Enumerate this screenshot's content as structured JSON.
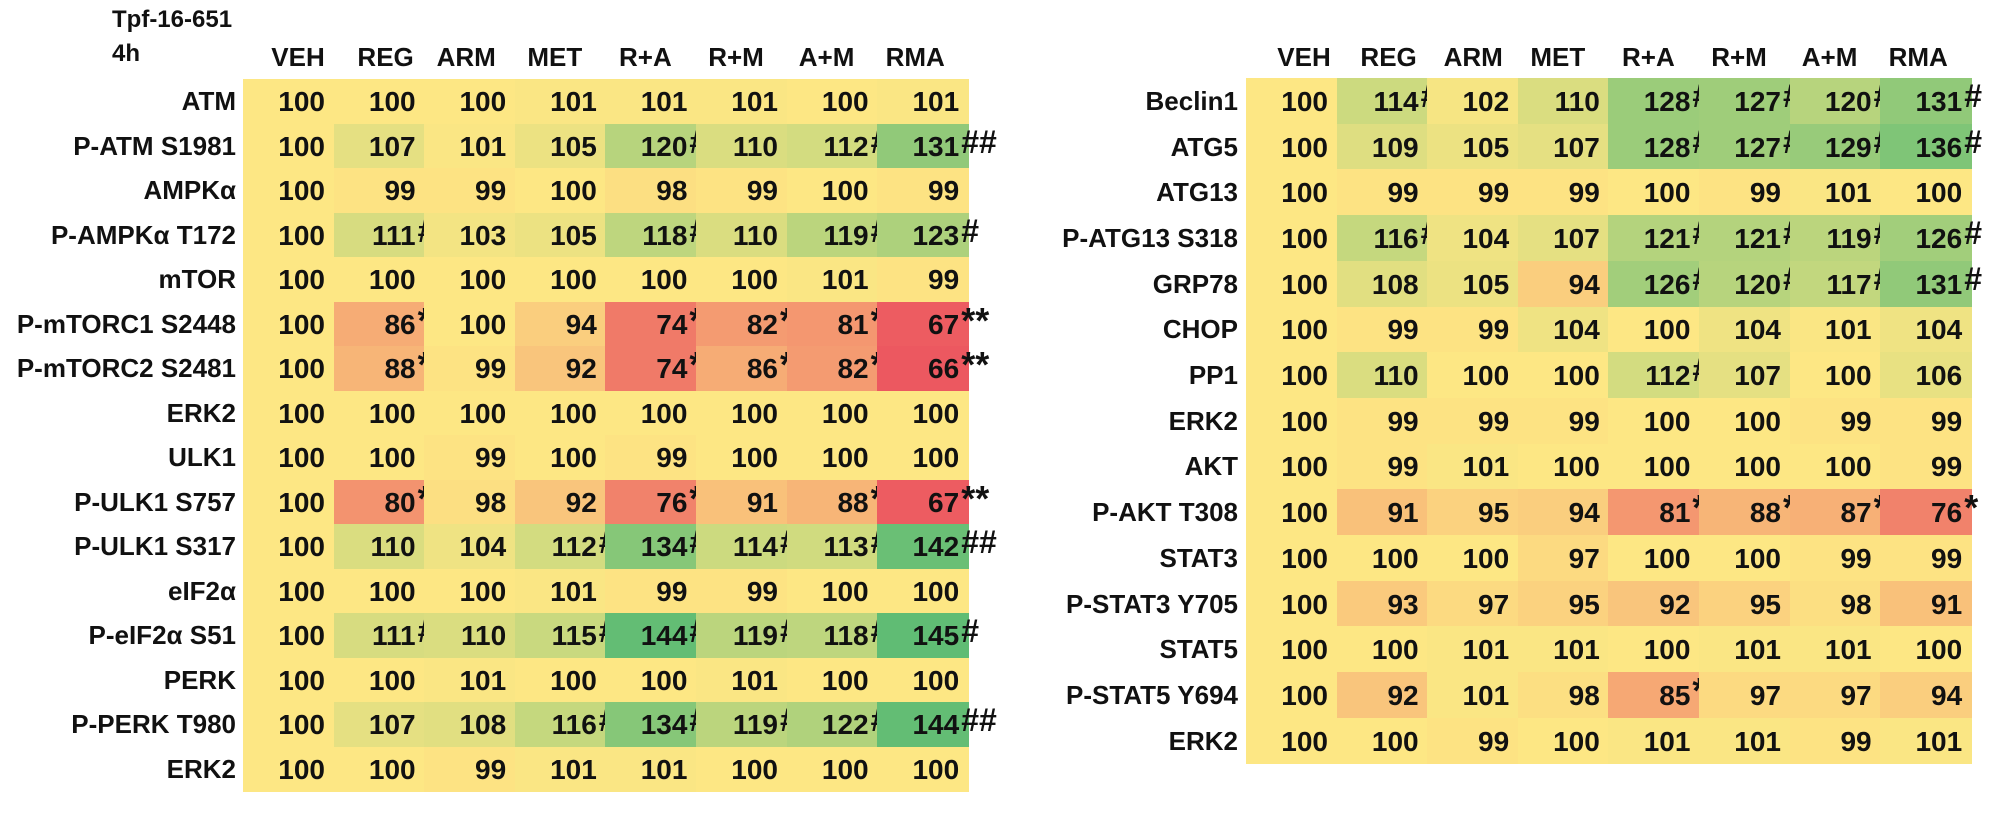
{
  "chart_data": [
    {
      "type": "heatmap",
      "title": "Tpf-16-651",
      "subtitle": "4h",
      "columns": [
        "VEH",
        "REG",
        "ARM",
        "MET",
        "R+A",
        "R+M",
        "A+M",
        "RMA"
      ],
      "rows": [
        {
          "label": "ATM",
          "values": [
            100,
            100,
            100,
            101,
            101,
            101,
            100,
            101
          ],
          "marks": [
            "",
            "",
            "",
            "",
            "",
            "",
            "",
            ""
          ]
        },
        {
          "label": "P-ATM S1981",
          "values": [
            100,
            107,
            101,
            105,
            120,
            110,
            112,
            131
          ],
          "marks": [
            "",
            "",
            "",
            "",
            "#",
            "",
            "#",
            "##"
          ]
        },
        {
          "label": "AMPKα",
          "values": [
            100,
            99,
            99,
            100,
            98,
            99,
            100,
            99
          ],
          "marks": [
            "",
            "",
            "",
            "",
            "",
            "",
            "",
            ""
          ]
        },
        {
          "label": "P-AMPKα T172",
          "values": [
            100,
            111,
            103,
            105,
            118,
            110,
            119,
            123
          ],
          "marks": [
            "",
            "#",
            "",
            "",
            "#",
            "",
            "#",
            "#"
          ]
        },
        {
          "label": "mTOR",
          "values": [
            100,
            100,
            100,
            100,
            100,
            100,
            101,
            99
          ],
          "marks": [
            "",
            "",
            "",
            "",
            "",
            "",
            "",
            ""
          ]
        },
        {
          "label": "P-mTORC1 S2448",
          "values": [
            100,
            86,
            100,
            94,
            74,
            82,
            81,
            67
          ],
          "marks": [
            "",
            "*",
            "",
            "",
            "*",
            "*",
            "*",
            "**"
          ]
        },
        {
          "label": "P-mTORC2 S2481",
          "values": [
            100,
            88,
            99,
            92,
            74,
            86,
            82,
            66
          ],
          "marks": [
            "",
            "*",
            "",
            "",
            "*",
            "*",
            "*",
            "**"
          ]
        },
        {
          "label": "ERK2",
          "values": [
            100,
            100,
            100,
            100,
            100,
            100,
            100,
            100
          ],
          "marks": [
            "",
            "",
            "",
            "",
            "",
            "",
            "",
            ""
          ]
        },
        {
          "label": "ULK1",
          "values": [
            100,
            100,
            99,
            100,
            99,
            100,
            100,
            100
          ],
          "marks": [
            "",
            "",
            "",
            "",
            "",
            "",
            "",
            ""
          ]
        },
        {
          "label": "P-ULK1 S757",
          "values": [
            100,
            80,
            98,
            92,
            76,
            91,
            88,
            67
          ],
          "marks": [
            "",
            "*",
            "",
            "",
            "*",
            "",
            "*",
            "**"
          ]
        },
        {
          "label": "P-ULK1 S317",
          "values": [
            100,
            110,
            104,
            112,
            134,
            114,
            113,
            142
          ],
          "marks": [
            "",
            "",
            "",
            "#",
            "#",
            "#",
            "#",
            "##"
          ]
        },
        {
          "label": "eIF2α",
          "values": [
            100,
            100,
            100,
            101,
            99,
            99,
            100,
            100
          ],
          "marks": [
            "",
            "",
            "",
            "",
            "",
            "",
            "",
            ""
          ]
        },
        {
          "label": "P-eIF2α S51",
          "values": [
            100,
            111,
            110,
            115,
            144,
            119,
            118,
            145
          ],
          "marks": [
            "",
            "#",
            "",
            "#",
            "#",
            "#",
            "#",
            "#"
          ]
        },
        {
          "label": "PERK",
          "values": [
            100,
            100,
            101,
            100,
            100,
            101,
            100,
            100
          ],
          "marks": [
            "",
            "",
            "",
            "",
            "",
            "",
            "",
            ""
          ]
        },
        {
          "label": "P-PERK T980",
          "values": [
            100,
            107,
            108,
            116,
            134,
            119,
            122,
            144
          ],
          "marks": [
            "",
            "",
            "",
            "#",
            "#",
            "#",
            "#",
            "##"
          ]
        },
        {
          "label": "ERK2",
          "values": [
            100,
            100,
            99,
            101,
            101,
            100,
            100,
            100
          ],
          "marks": [
            "",
            "",
            "",
            "",
            "",
            "",
            "",
            ""
          ]
        }
      ]
    },
    {
      "type": "heatmap",
      "columns": [
        "VEH",
        "REG",
        "ARM",
        "MET",
        "R+A",
        "R+M",
        "A+M",
        "RMA"
      ],
      "rows": [
        {
          "label": "Beclin1",
          "values": [
            100,
            114,
            102,
            110,
            128,
            127,
            120,
            131
          ],
          "marks": [
            "",
            "#",
            "",
            "",
            "#",
            "#",
            "#",
            "#"
          ]
        },
        {
          "label": "ATG5",
          "values": [
            100,
            109,
            105,
            107,
            128,
            127,
            129,
            136
          ],
          "marks": [
            "",
            "",
            "",
            "",
            "#",
            "#",
            "#",
            "#"
          ]
        },
        {
          "label": "ATG13",
          "values": [
            100,
            99,
            99,
            99,
            100,
            99,
            101,
            100
          ],
          "marks": [
            "",
            "",
            "",
            "",
            "",
            "",
            "",
            ""
          ]
        },
        {
          "label": "P-ATG13 S318",
          "values": [
            100,
            116,
            104,
            107,
            121,
            121,
            119,
            126
          ],
          "marks": [
            "",
            "#",
            "",
            "",
            "#",
            "#",
            "#",
            "#"
          ]
        },
        {
          "label": "GRP78",
          "values": [
            100,
            108,
            105,
            94,
            126,
            120,
            117,
            131
          ],
          "marks": [
            "",
            "",
            "",
            "",
            "#",
            "#",
            "#",
            "#"
          ]
        },
        {
          "label": "CHOP",
          "values": [
            100,
            99,
            99,
            104,
            100,
            104,
            101,
            104
          ],
          "marks": [
            "",
            "",
            "",
            "",
            "",
            "",
            "",
            ""
          ]
        },
        {
          "label": "PP1",
          "values": [
            100,
            110,
            100,
            100,
            112,
            107,
            100,
            106
          ],
          "marks": [
            "",
            "",
            "",
            "",
            "#",
            "",
            "",
            ""
          ]
        },
        {
          "label": "ERK2",
          "values": [
            100,
            99,
            99,
            99,
            100,
            100,
            99,
            99
          ],
          "marks": [
            "",
            "",
            "",
            "",
            "",
            "",
            "",
            ""
          ]
        },
        {
          "label": "AKT",
          "values": [
            100,
            99,
            101,
            100,
            100,
            100,
            100,
            99
          ],
          "marks": [
            "",
            "",
            "",
            "",
            "",
            "",
            "",
            ""
          ]
        },
        {
          "label": "P-AKT T308",
          "values": [
            100,
            91,
            95,
            94,
            81,
            88,
            87,
            76
          ],
          "marks": [
            "",
            "",
            "",
            "",
            "*",
            "*",
            "*",
            "*"
          ]
        },
        {
          "label": "STAT3",
          "values": [
            100,
            100,
            100,
            97,
            100,
            100,
            99,
            99
          ],
          "marks": [
            "",
            "",
            "",
            "",
            "",
            "",
            "",
            ""
          ]
        },
        {
          "label": "P-STAT3 Y705",
          "values": [
            100,
            93,
            97,
            95,
            92,
            95,
            98,
            91
          ],
          "marks": [
            "",
            "",
            "",
            "",
            "",
            "",
            "",
            ""
          ]
        },
        {
          "label": "STAT5",
          "values": [
            100,
            100,
            101,
            101,
            100,
            101,
            101,
            100
          ],
          "marks": [
            "",
            "",
            "",
            "",
            "",
            "",
            "",
            ""
          ]
        },
        {
          "label": "P-STAT5 Y694",
          "values": [
            100,
            92,
            101,
            98,
            85,
            97,
            97,
            94
          ],
          "marks": [
            "",
            "",
            "",
            "",
            "*",
            "",
            "",
            ""
          ]
        },
        {
          "label": "ERK2",
          "values": [
            100,
            100,
            99,
            100,
            101,
            101,
            99,
            101
          ],
          "marks": [
            "",
            "",
            "",
            "",
            "",
            "",
            "",
            ""
          ]
        }
      ]
    }
  ]
}
